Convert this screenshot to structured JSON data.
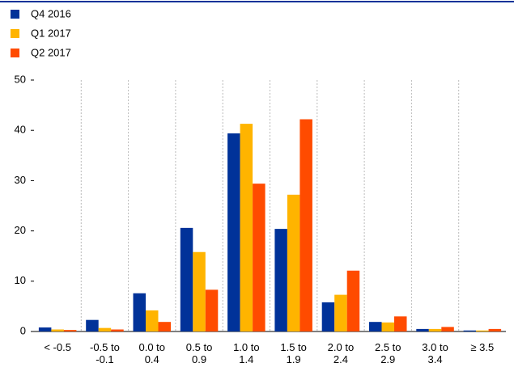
{
  "chart_data": {
    "type": "bar",
    "categories": [
      "< -0.5",
      "-0.5 to -0.1",
      "0.0 to 0.4",
      "0.5 to 0.9",
      "1.0 to 1.4",
      "1.5 to 1.9",
      "2.0 to 2.4",
      "2.5 to 2.9",
      "3.0 to 3.4",
      "≥ 3.5"
    ],
    "series": [
      {
        "name": "Q4 2016",
        "color": "#003299",
        "values": [
          0.8,
          2.3,
          7.6,
          20.6,
          39.4,
          20.4,
          5.8,
          1.9,
          0.5,
          0.2
        ]
      },
      {
        "name": "Q1 2017",
        "color": "#ffb400",
        "values": [
          0.4,
          0.7,
          4.2,
          15.8,
          41.3,
          27.2,
          7.3,
          1.8,
          0.5,
          0.2
        ]
      },
      {
        "name": "Q2 2017",
        "color": "#ff4b00",
        "values": [
          0.3,
          0.4,
          1.9,
          8.3,
          29.4,
          42.2,
          12.1,
          3.0,
          0.9,
          0.5
        ]
      }
    ],
    "ylim": [
      0,
      50
    ],
    "yticks": [
      0,
      10,
      20,
      30,
      40,
      50
    ],
    "legend": "top-left"
  }
}
